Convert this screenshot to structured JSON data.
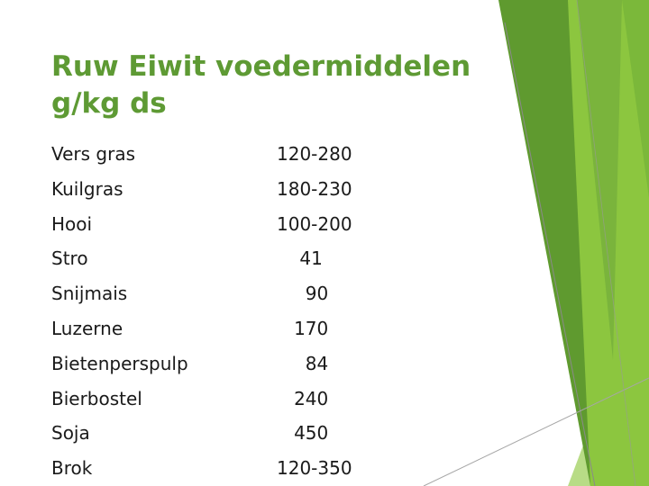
{
  "slide": {
    "title_line1": "Ruw Eiwit voedermiddelen",
    "title_line2": "g/kg ds",
    "rows": [
      {
        "name": "Vers gras",
        "value": "120-280"
      },
      {
        "name": "Kuilgras",
        "value": "180-230"
      },
      {
        "name": "Hooi",
        "value": "100-200"
      },
      {
        "name": "Stro",
        "value": "    41"
      },
      {
        "name": "Snijmais",
        "value": "     90"
      },
      {
        "name": "Luzerne",
        "value": "   170"
      },
      {
        "name": "Bietenperspulp",
        "value": "     84"
      },
      {
        "name": "Bierbostel",
        "value": "   240"
      },
      {
        "name": "Soja",
        "value": "   450"
      },
      {
        "name": "Brok",
        "value": "120-350"
      }
    ]
  },
  "colors": {
    "title": "#5e9a34",
    "accent_dark": "#5f9a2f",
    "accent_mid": "#8cc63f",
    "accent_light": "#c5e29a"
  }
}
